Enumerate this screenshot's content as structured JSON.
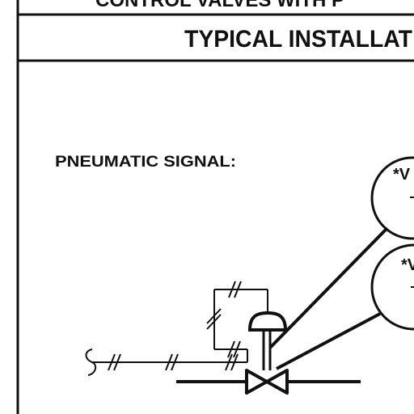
{
  "header": {
    "top_title": "CONTROL VALVES WITH P",
    "subtitle": "TYPICAL INSTALLAT"
  },
  "diagram": {
    "signal_label": "PNEUMATIC SIGNAL:",
    "bubble_top_text": "*V",
    "bubble_bottom_text": "*V"
  },
  "colors": {
    "ink": "#111111",
    "paper": "#ffffff"
  }
}
